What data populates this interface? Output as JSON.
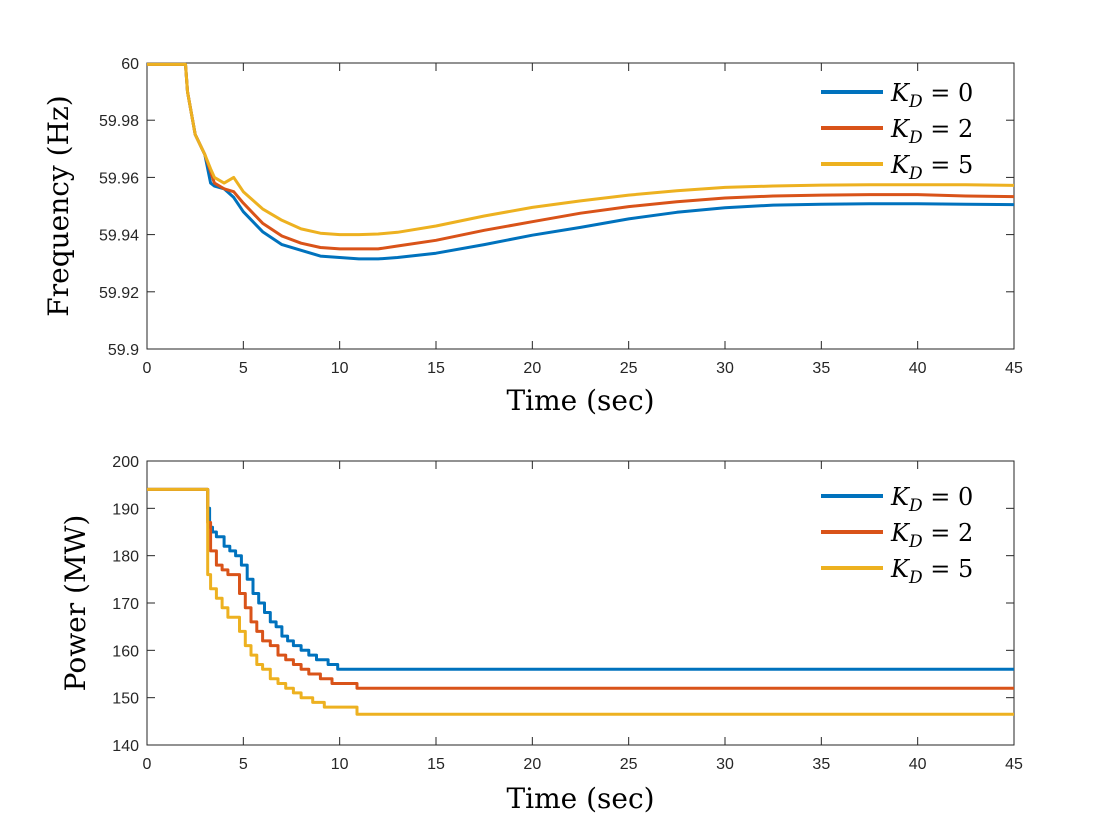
{
  "chart_data": [
    {
      "type": "line",
      "title": "",
      "xlabel": "Time (sec)",
      "ylabel": "Frequency (Hz)",
      "xlim": [
        0,
        45
      ],
      "ylim": [
        59.9,
        60.0
      ],
      "xticks": [
        0,
        5,
        10,
        15,
        20,
        25,
        30,
        35,
        40,
        45
      ],
      "yticks": [
        59.9,
        59.92,
        59.94,
        59.96,
        59.98,
        60
      ],
      "ytick_labels": [
        "59.9",
        "59.92",
        "59.94",
        "59.96",
        "59.98",
        "60"
      ],
      "legend_position": "top-right",
      "grid": false,
      "series": [
        {
          "name": "K_D = 0",
          "color": "#0072BD",
          "x": [
            0,
            2.0,
            2.1,
            2.5,
            3.0,
            3.3,
            3.5,
            4.0,
            4.5,
            5,
            6,
            7,
            8,
            9,
            10,
            11,
            12,
            13,
            15,
            17.5,
            20,
            22.5,
            25,
            27.5,
            30,
            32.5,
            35,
            37.5,
            40,
            42.5,
            45
          ],
          "values": [
            59.9995,
            59.9995,
            59.99,
            59.975,
            59.968,
            59.958,
            59.957,
            59.956,
            59.953,
            59.948,
            59.941,
            59.9365,
            59.9345,
            59.9325,
            59.932,
            59.9315,
            59.9315,
            59.932,
            59.9335,
            59.9365,
            59.9398,
            59.9425,
            59.9455,
            59.9478,
            59.9494,
            59.9503,
            59.9506,
            59.9508,
            59.9508,
            59.9506,
            59.9505
          ]
        },
        {
          "name": "K_D = 2",
          "color": "#D95319",
          "x": [
            0,
            2.0,
            2.1,
            2.5,
            3.0,
            3.3,
            3.5,
            4.0,
            4.5,
            5,
            6,
            7,
            8,
            9,
            10,
            11,
            12,
            13,
            15,
            17.5,
            20,
            22.5,
            25,
            27.5,
            30,
            32.5,
            35,
            37.5,
            40,
            42.5,
            45
          ],
          "values": [
            59.9995,
            59.9995,
            59.99,
            59.975,
            59.968,
            59.962,
            59.958,
            59.956,
            59.955,
            59.951,
            59.944,
            59.9395,
            59.937,
            59.9355,
            59.935,
            59.935,
            59.935,
            59.936,
            59.938,
            59.9415,
            59.9445,
            59.9475,
            59.9498,
            59.9515,
            59.9528,
            59.9535,
            59.9538,
            59.954,
            59.954,
            59.9535,
            59.9533
          ]
        },
        {
          "name": "K_D = 5",
          "color": "#EDB120",
          "x": [
            0,
            2.0,
            2.1,
            2.5,
            3.0,
            3.3,
            3.5,
            4.0,
            4.5,
            5,
            6,
            7,
            8,
            9,
            10,
            11,
            12,
            13,
            15,
            17.5,
            20,
            22.5,
            25,
            27.5,
            30,
            32.5,
            35,
            37.5,
            40,
            42.5,
            45
          ],
          "values": [
            59.9995,
            59.9995,
            59.99,
            59.975,
            59.968,
            59.963,
            59.96,
            59.958,
            59.96,
            59.955,
            59.949,
            59.945,
            59.942,
            59.9405,
            59.94,
            59.94,
            59.9402,
            59.9408,
            59.943,
            59.9465,
            59.9495,
            59.9518,
            59.9538,
            59.9553,
            59.9565,
            59.957,
            59.9573,
            59.9574,
            59.9574,
            59.9574,
            59.9572
          ]
        }
      ]
    },
    {
      "type": "line",
      "title": "",
      "xlabel": "Time (sec)",
      "ylabel": "Power (MW)",
      "xlim": [
        0,
        45
      ],
      "ylim": [
        140,
        200
      ],
      "xticks": [
        0,
        5,
        10,
        15,
        20,
        25,
        30,
        35,
        40,
        45
      ],
      "yticks": [
        140,
        150,
        160,
        170,
        180,
        190,
        200
      ],
      "ytick_labels": [
        "140",
        "150",
        "160",
        "170",
        "180",
        "190",
        "200"
      ],
      "legend_position": "top-right",
      "grid": false,
      "series": [
        {
          "name": "K_D = 0",
          "color": "#0072BD",
          "step": true,
          "x": [
            0,
            3.05,
            3.15,
            3.25,
            3.4,
            3.6,
            4.0,
            4.3,
            4.6,
            4.9,
            5.2,
            5.5,
            5.8,
            6.1,
            6.4,
            6.7,
            7.0,
            7.3,
            7.6,
            8.0,
            8.4,
            8.8,
            9.4,
            9.9,
            10.5,
            45
          ],
          "values": [
            194,
            194,
            190,
            186,
            185,
            184,
            182,
            181,
            180,
            178,
            175,
            172,
            170,
            168,
            166,
            165,
            163,
            162,
            161,
            160,
            159,
            158,
            157,
            156,
            156,
            156
          ]
        },
        {
          "name": "K_D = 2",
          "color": "#D95319",
          "step": true,
          "x": [
            0,
            3.05,
            3.15,
            3.3,
            3.6,
            3.9,
            4.2,
            4.6,
            4.8,
            5.1,
            5.4,
            5.7,
            6.0,
            6.4,
            6.8,
            7.2,
            7.6,
            8.0,
            8.4,
            9.0,
            9.6,
            10.2,
            10.9,
            45
          ],
          "values": [
            194,
            194,
            187,
            181,
            178,
            177,
            176,
            176,
            172,
            169,
            166,
            164,
            162,
            161,
            159,
            158,
            157,
            156,
            155,
            154,
            153,
            153,
            152,
            152
          ]
        },
        {
          "name": "K_D = 5",
          "color": "#EDB120",
          "step": true,
          "x": [
            0,
            3.05,
            3.15,
            3.3,
            3.6,
            3.9,
            4.2,
            4.6,
            4.8,
            5.1,
            5.4,
            5.7,
            6.0,
            6.4,
            6.8,
            7.2,
            7.6,
            8.0,
            8.6,
            9.2,
            9.8,
            10.9,
            45
          ],
          "values": [
            194,
            194,
            176,
            173,
            171,
            169,
            167,
            167,
            164,
            161,
            159,
            157,
            156,
            154,
            153,
            152,
            151,
            150,
            149,
            148,
            148,
            146.5,
            146.5
          ]
        }
      ]
    }
  ]
}
